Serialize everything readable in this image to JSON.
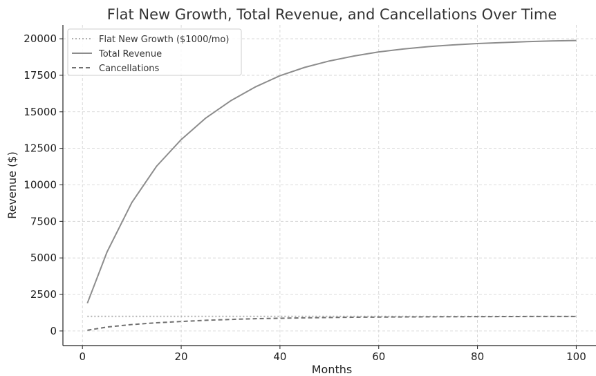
{
  "chart_data": {
    "type": "line",
    "title": "Flat New Growth, Total Revenue, and Cancellations Over Time",
    "xlabel": "Months",
    "ylabel": "Revenue ($)",
    "xlim": [
      -3.95,
      104
    ],
    "ylim": [
      -1000,
      20950
    ],
    "xticks": [
      0,
      20,
      40,
      60,
      80,
      100
    ],
    "yticks": [
      0,
      2500,
      5000,
      7500,
      10000,
      12500,
      15000,
      17500,
      20000
    ],
    "grid": true,
    "legend_position": "top-left",
    "x_range": [
      1,
      100
    ],
    "series": [
      {
        "name": "Flat New Growth ($1000/mo)",
        "style": "dotted",
        "color": "#b0b0b0",
        "x": [
          1,
          10,
          20,
          30,
          40,
          50,
          60,
          70,
          80,
          90,
          100
        ],
        "values": [
          1000,
          1000,
          1000,
          1000,
          1000,
          1000,
          1000,
          1000,
          1000,
          1000,
          1000
        ]
      },
      {
        "name": "Total Revenue",
        "style": "solid",
        "color": "#8c8c8c",
        "x": [
          1,
          5,
          10,
          15,
          20,
          25,
          30,
          35,
          40,
          45,
          50,
          55,
          60,
          65,
          70,
          75,
          80,
          85,
          90,
          95,
          100
        ],
        "values": [
          1900,
          5420,
          8790,
          11270,
          13100,
          14580,
          15750,
          16700,
          17470,
          18040,
          18480,
          18820,
          19100,
          19300,
          19460,
          19580,
          19670,
          19740,
          19800,
          19850,
          19880
        ]
      },
      {
        "name": "Cancellations",
        "style": "dashed",
        "color": "#707070",
        "x": [
          1,
          5,
          10,
          15,
          20,
          25,
          30,
          35,
          40,
          45,
          50,
          55,
          60,
          65,
          70,
          75,
          80,
          85,
          90,
          95,
          100
        ],
        "values": [
          50,
          270,
          440,
          560,
          650,
          730,
          790,
          840,
          870,
          900,
          920,
          940,
          950,
          960,
          970,
          975,
          980,
          985,
          990,
          992,
          995
        ]
      }
    ]
  }
}
